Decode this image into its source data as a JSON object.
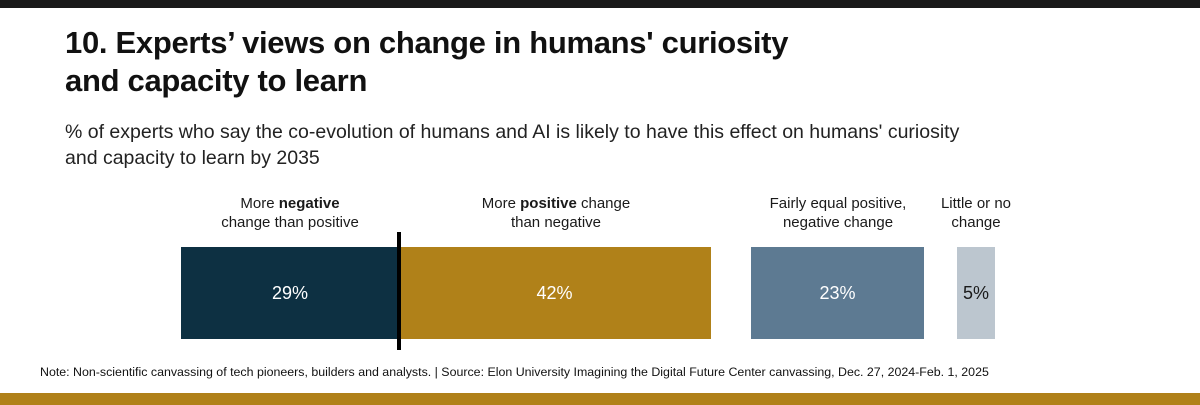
{
  "title_line1": "10. Experts’ views on change in humans' curiosity",
  "title_line2": "and capacity to learn",
  "subtitle_line1": "% of experts who say the co-evolution of humans and AI is likely to have this effect on humans' curiosity",
  "subtitle_line2": "and capacity to learn by 2035",
  "note": "Note: Non-scientific canvassing of tech pioneers, builders and analysts. | Source: Elon University Imagining the Digital Future Center canvassing,  Dec. 27, 2024-Feb. 1, 2025",
  "colors": {
    "negative": "#0d3042",
    "positive": "#b08119",
    "equal": "#5d7a92",
    "little": "#bcc6cf",
    "accent_bottom": "#b08119"
  },
  "chart_data": {
    "type": "bar",
    "orientation": "horizontal",
    "title": "10. Experts’ views on change in humans' curiosity and capacity to learn",
    "subtitle": "% of experts who say the co-evolution of humans and AI is likely to have this effect on humans' curiosity and capacity to learn by 2035",
    "unit": "%",
    "categories": [
      {
        "key": "negative",
        "label_lines": [
          [
            "More ",
            "negative",
            ""
          ],
          [
            "change than positive"
          ]
        ],
        "value": 29,
        "value_label": "29%",
        "text_color": "#ffffff"
      },
      {
        "key": "positive",
        "label_lines": [
          [
            "More ",
            "positive",
            " change"
          ],
          [
            "than negative"
          ]
        ],
        "value": 42,
        "value_label": "42%",
        "text_color": "#ffffff"
      },
      {
        "key": "equal",
        "label_lines": [
          [
            "Fairly equal positive,"
          ],
          [
            "negative change"
          ]
        ],
        "value": 23,
        "value_label": "23%",
        "text_color": "#ffffff"
      },
      {
        "key": "little",
        "label_lines": [
          [
            "Little or no"
          ],
          [
            "change"
          ]
        ],
        "value": 5,
        "value_label": "5%",
        "text_color": "#1a1a1a"
      }
    ]
  }
}
